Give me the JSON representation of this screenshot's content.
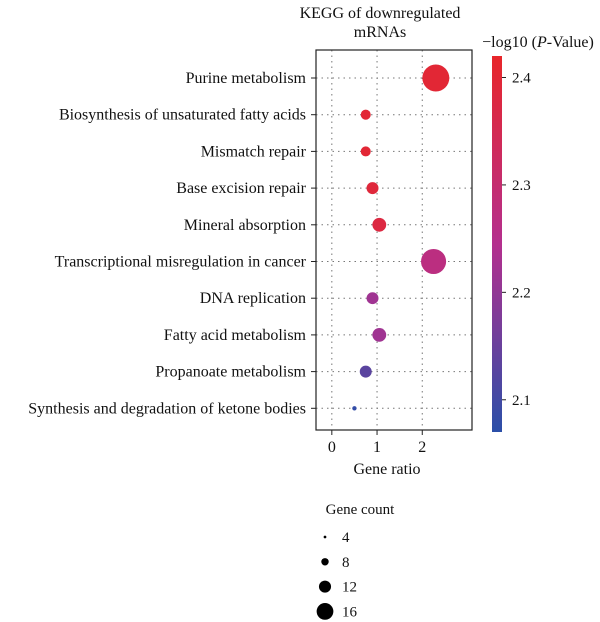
{
  "chart_data": {
    "type": "scatter",
    "title_lines": [
      "KEGG of downregulated",
      "mRNAs"
    ],
    "xlabel": "Gene ratio",
    "xlim": [
      -0.35,
      3.1
    ],
    "xticks": [
      "0",
      "1",
      "2"
    ],
    "pathways": [
      {
        "name": "Purine metabolism",
        "gene_ratio": 2.3,
        "neglog10p": 2.4,
        "gene_count": 16
      },
      {
        "name": "Biosynthesis of unsaturated fatty acids",
        "gene_ratio": 0.75,
        "neglog10p": 2.4,
        "gene_count": 7
      },
      {
        "name": "Mismatch repair",
        "gene_ratio": 0.75,
        "neglog10p": 2.4,
        "gene_count": 7
      },
      {
        "name": "Base excision repair",
        "gene_ratio": 0.9,
        "neglog10p": 2.39,
        "gene_count": 8
      },
      {
        "name": "Mineral absorption",
        "gene_ratio": 1.05,
        "neglog10p": 2.38,
        "gene_count": 9
      },
      {
        "name": "Transcriptional misregulation in cancer",
        "gene_ratio": 2.25,
        "neglog10p": 2.27,
        "gene_count": 15
      },
      {
        "name": "DNA replication",
        "gene_ratio": 0.9,
        "neglog10p": 2.22,
        "gene_count": 8
      },
      {
        "name": "Fatty acid metabolism",
        "gene_ratio": 1.05,
        "neglog10p": 2.22,
        "gene_count": 9
      },
      {
        "name": "Propanoate metabolism",
        "gene_ratio": 0.75,
        "neglog10p": 2.13,
        "gene_count": 8
      },
      {
        "name": "Synthesis and degradation of ketone bodies",
        "gene_ratio": 0.5,
        "neglog10p": 2.08,
        "gene_count": 4
      }
    ],
    "colorbar": {
      "title": "−log10 (P-Value)",
      "title_prefix": "−log10 (",
      "title_italic": "P",
      "title_suffix": "-Value)",
      "range": [
        2.07,
        2.42
      ],
      "ticks": [
        "2.1",
        "2.2",
        "2.3",
        "2.4"
      ],
      "low_color": "#2b4fa8",
      "mid_color": "#b42f8e",
      "high_color": "#e8262a"
    },
    "size_legend": {
      "title": "Gene count",
      "entries": [
        "4",
        "8",
        "12",
        "16"
      ]
    },
    "grid": "dotted"
  }
}
